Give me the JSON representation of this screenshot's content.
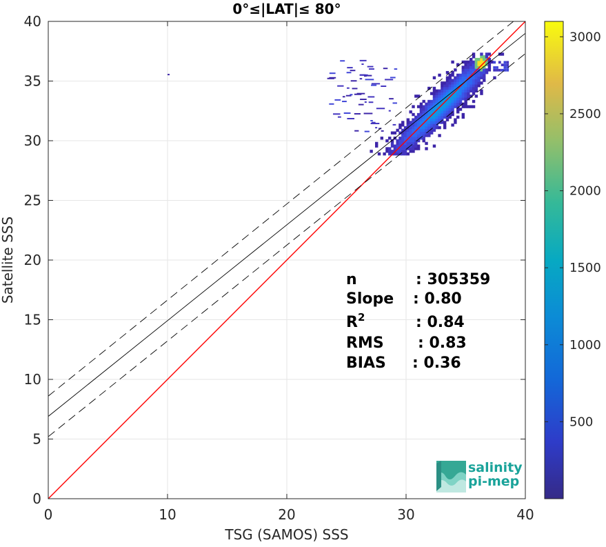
{
  "chart_data": {
    "type": "heatmap",
    "title": "0°≤|LAT|≤ 80°",
    "xlabel": "TSG (SAMOS) SSS",
    "ylabel": "Satellite SSS",
    "xlim": [
      0,
      40
    ],
    "ylim": [
      0,
      40
    ],
    "xticks": [
      "0",
      "10",
      "20",
      "30",
      "40"
    ],
    "yticks": [
      "0",
      "5",
      "10",
      "15",
      "20",
      "25",
      "30",
      "35",
      "40"
    ],
    "grid": true,
    "colorbar": {
      "colormap": "parula",
      "range": [
        0,
        3100
      ],
      "ticks": [
        "500",
        "1000",
        "1500",
        "2000",
        "2500",
        "3000"
      ]
    },
    "lines": [
      {
        "name": "1:1 line",
        "color": "#ff0000",
        "points": [
          [
            0,
            0
          ],
          [
            40,
            40
          ]
        ]
      },
      {
        "name": "regression fit",
        "color": "#000000",
        "style": "solid",
        "points": [
          [
            0,
            6.9
          ],
          [
            40,
            39.0
          ]
        ]
      },
      {
        "name": "upper bound",
        "color": "#000000",
        "style": "dashed",
        "points": [
          [
            0,
            8.6
          ],
          [
            40,
            40.8
          ]
        ]
      },
      {
        "name": "lower bound",
        "color": "#000000",
        "style": "dashed",
        "points": [
          [
            0,
            5.2
          ],
          [
            40,
            37.3
          ]
        ]
      }
    ],
    "density_cloud": {
      "center": [
        33.0,
        33.0
      ],
      "x_range": [
        23.0,
        38.5
      ],
      "y_range": [
        28.8,
        37.3
      ],
      "peak": [
        36.2,
        36.4
      ],
      "outlier": [
        10.0,
        35.6
      ]
    },
    "stats": [
      {
        "label": "n",
        "value": ": 305359"
      },
      {
        "label": "Slope",
        "value": ": 0.80"
      },
      {
        "label": "R2",
        "value": ": 0.84"
      },
      {
        "label": "RMS",
        "value": ": 0.83"
      },
      {
        "label": "BIAS",
        "value": ": 0.36"
      }
    ]
  },
  "logo": {
    "line1": "salinity",
    "line2": "pi-mep"
  }
}
